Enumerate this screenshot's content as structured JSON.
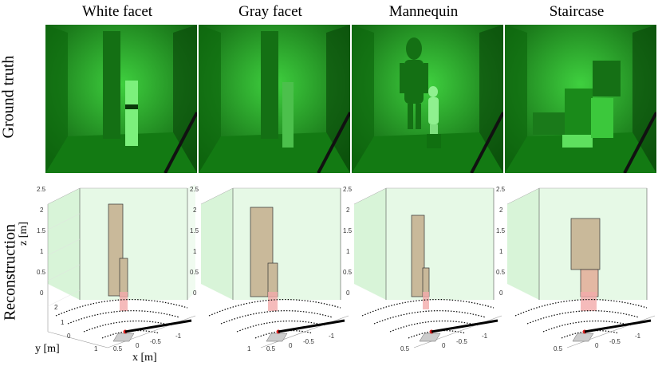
{
  "columns": [
    {
      "title": "White facet"
    },
    {
      "title": "Gray facet"
    },
    {
      "title": "Mannequin"
    },
    {
      "title": "Staircase"
    }
  ],
  "rows": {
    "top": "Ground truth",
    "bottom": "Reconstruction"
  },
  "axes": {
    "z_label": "z [m]",
    "y_label": "y [m]",
    "x_label": "x [m]",
    "z_ticks": [
      "2.5",
      "2",
      "1.5",
      "1",
      "0.5",
      "0"
    ],
    "y_ticks": [
      "2",
      "1",
      "0"
    ],
    "x_ticks": [
      "1",
      "0.5",
      "0",
      "-0.5",
      "-1"
    ]
  },
  "colors": {
    "scene_green": "#1fa51f",
    "wall_green": "#c8f0c8",
    "facet_tan": "#c9b99a",
    "facet_red": "#f2aaaa"
  }
}
